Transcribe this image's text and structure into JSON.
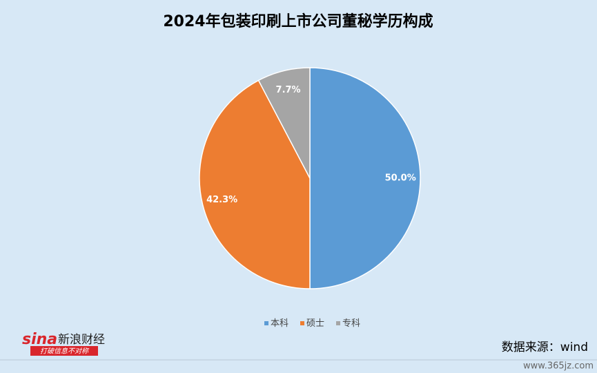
{
  "chart_data": {
    "type": "pie",
    "title": "2024年包装印刷上市公司董秘学历构成",
    "categories": [
      "本科",
      "硕士",
      "专科"
    ],
    "values": [
      50.0,
      42.3,
      7.7
    ],
    "value_labels": [
      "50.0%",
      "42.3%",
      "7.7%"
    ],
    "colors": [
      "#5b9bd5",
      "#ed7d31",
      "#a5a5a5"
    ],
    "legend": "bottom"
  },
  "source": "数据来源：wind",
  "logo": {
    "brand": "sina",
    "name": "新浪财经",
    "slogan": "打破信息不对称"
  },
  "watermark": "www.365jz.com"
}
